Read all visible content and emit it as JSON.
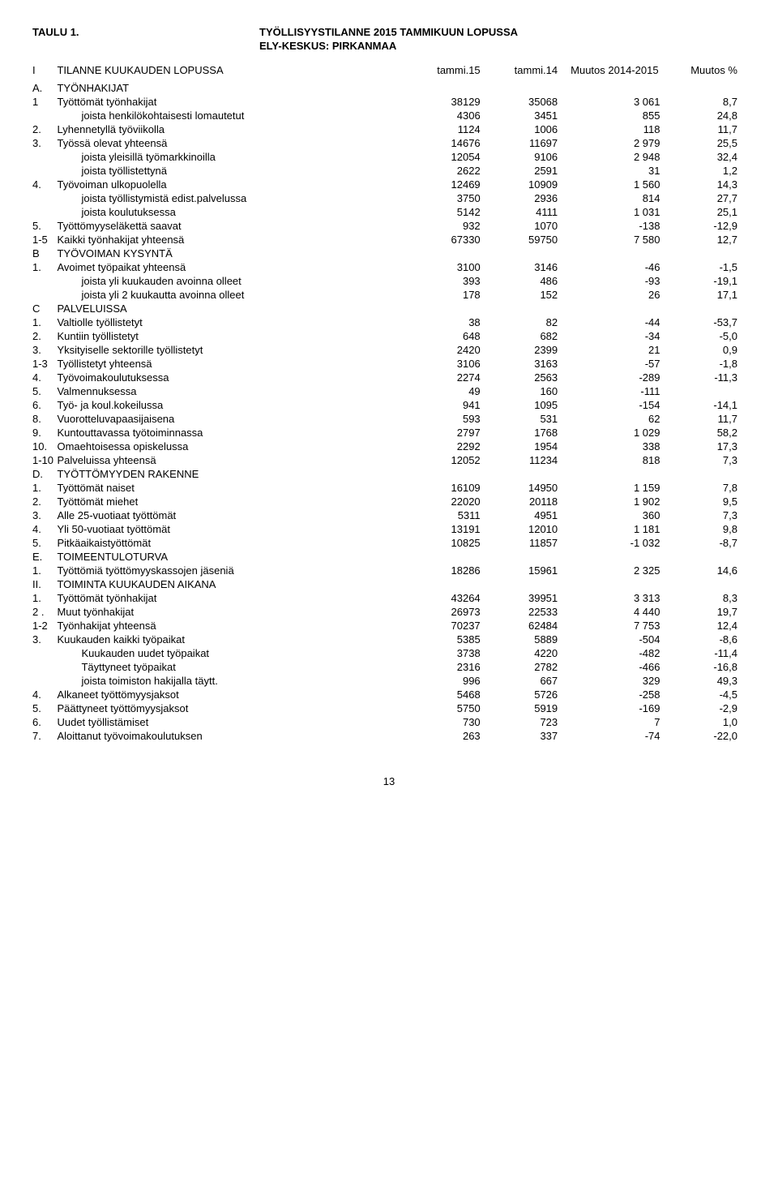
{
  "title_left": "TAULU 1.",
  "title_center": "TYÖLLISYYSTILANNE 2015 TAMMIKUUN LOPUSSA",
  "subtitle": "ELY-KESKUS: PIRKANMAA",
  "header": {
    "code": "I",
    "label": "TILANNE KUUKAUDEN LOPUSSA",
    "c1": "tammi.15",
    "c2": "tammi.14",
    "c3": "Muutos 2014-2015",
    "c4": "Muutos %"
  },
  "rows": [
    {
      "code": "A.",
      "label": "TYÖNHAKIJAT",
      "section": true
    },
    {
      "code": "1",
      "label": "Työttömät työnhakijat",
      "v": [
        "38129",
        "35068",
        "3 061",
        "8,7"
      ]
    },
    {
      "code": "",
      "label": "joista henkilökohtaisesti lomautetut",
      "indent": true,
      "v": [
        "4306",
        "3451",
        "855",
        "24,8"
      ]
    },
    {
      "code": "2.",
      "label": "Lyhennetyllä työviikolla",
      "v": [
        "1124",
        "1006",
        "118",
        "11,7"
      ]
    },
    {
      "code": "3.",
      "label": "Työssä olevat yhteensä",
      "v": [
        "14676",
        "11697",
        "2 979",
        "25,5"
      ]
    },
    {
      "code": "",
      "label": "joista yleisillä työmarkkinoilla",
      "indent": true,
      "v": [
        "12054",
        "9106",
        "2 948",
        "32,4"
      ]
    },
    {
      "code": "",
      "label": "joista työllistettynä",
      "indent": true,
      "v": [
        "2622",
        "2591",
        "31",
        "1,2"
      ]
    },
    {
      "code": "4.",
      "label": "Työvoiman ulkopuolella",
      "v": [
        "12469",
        "10909",
        "1 560",
        "14,3"
      ]
    },
    {
      "code": "",
      "label": "joista työllistymistä edist.palvelussa",
      "indent": true,
      "v": [
        "3750",
        "2936",
        "814",
        "27,7"
      ]
    },
    {
      "code": "",
      "label": "joista koulutuksessa",
      "indent": true,
      "v": [
        "5142",
        "4111",
        "1 031",
        "25,1"
      ]
    },
    {
      "code": "5.",
      "label": "Työttömyyseläkettä saavat",
      "v": [
        "932",
        "1070",
        "-138",
        "-12,9"
      ]
    },
    {
      "code": "1-5",
      "label": "Kaikki työnhakijat yhteensä",
      "v": [
        "67330",
        "59750",
        "7 580",
        "12,7"
      ]
    },
    {
      "code": "B",
      "label": "TYÖVOIMAN KYSYNTÄ",
      "section": true
    },
    {
      "code": "1.",
      "label": "Avoimet työpaikat yhteensä",
      "v": [
        "3100",
        "3146",
        "-46",
        "-1,5"
      ]
    },
    {
      "code": "",
      "label": "joista yli kuukauden avoinna olleet",
      "indent": true,
      "v": [
        "393",
        "486",
        "-93",
        "-19,1"
      ]
    },
    {
      "code": "",
      "label": "joista yli 2 kuukautta avoinna olleet",
      "indent": true,
      "v": [
        "178",
        "152",
        "26",
        "17,1"
      ]
    },
    {
      "code": "C",
      "label": "PALVELUISSA",
      "section": true
    },
    {
      "code": "1.",
      "label": "Valtiolle työllistetyt",
      "v": [
        "38",
        "82",
        "-44",
        "-53,7"
      ]
    },
    {
      "code": "2.",
      "label": "Kuntiin työllistetyt",
      "v": [
        "648",
        "682",
        "-34",
        "-5,0"
      ]
    },
    {
      "code": "3.",
      "label": "Yksityiselle sektorille työllistetyt",
      "v": [
        "2420",
        "2399",
        "21",
        "0,9"
      ]
    },
    {
      "code": "1-3",
      "label": "Työllistetyt yhteensä",
      "v": [
        "3106",
        "3163",
        "-57",
        "-1,8"
      ]
    },
    {
      "code": "4.",
      "label": "Työvoimakoulutuksessa",
      "v": [
        "2274",
        "2563",
        "-289",
        "-11,3"
      ]
    },
    {
      "code": "5.",
      "label": "Valmennuksessa",
      "v": [
        "49",
        "160",
        "-111",
        ""
      ]
    },
    {
      "code": "6.",
      "label": "Työ- ja koul.kokeilussa",
      "v": [
        "941",
        "1095",
        "-154",
        "-14,1"
      ]
    },
    {
      "code": "8.",
      "label": "Vuorotteluvapaasijaisena",
      "v": [
        "593",
        "531",
        "62",
        "11,7"
      ]
    },
    {
      "code": "9.",
      "label": "Kuntouttavassa työtoiminnassa",
      "v": [
        "2797",
        "1768",
        "1 029",
        "58,2"
      ]
    },
    {
      "code": "10.",
      "label": "Omaehtoisessa opiskelussa",
      "v": [
        "2292",
        "1954",
        "338",
        "17,3"
      ]
    },
    {
      "code": "1-10",
      "label": "Palveluissa yhteensä",
      "v": [
        "12052",
        "11234",
        "818",
        "7,3"
      ]
    },
    {
      "code": "D.",
      "label": "TYÖTTÖMYYDEN RAKENNE",
      "section": true
    },
    {
      "code": "1.",
      "label": "Työttömät naiset",
      "v": [
        "16109",
        "14950",
        "1 159",
        "7,8"
      ]
    },
    {
      "code": "2.",
      "label": "Työttömät miehet",
      "v": [
        "22020",
        "20118",
        "1 902",
        "9,5"
      ]
    },
    {
      "code": "3.",
      "label": "Alle 25-vuotiaat työttömät",
      "v": [
        "5311",
        "4951",
        "360",
        "7,3"
      ]
    },
    {
      "code": "4.",
      "label": "Yli 50-vuotiaat työttömät",
      "v": [
        "13191",
        "12010",
        "1 181",
        "9,8"
      ]
    },
    {
      "code": "5.",
      "label": "Pitkäaikaistyöttömät",
      "v": [
        "10825",
        "11857",
        "-1 032",
        "-8,7"
      ]
    },
    {
      "code": "E.",
      "label": "TOIMEENTULOTURVA",
      "section": true
    },
    {
      "code": "1.",
      "label": "Työttömiä työttömyyskassojen jäseniä",
      "v": [
        "18286",
        "15961",
        "2 325",
        "14,6"
      ]
    },
    {
      "code": "II.",
      "label": "TOIMINTA KUUKAUDEN AIKANA",
      "section": true
    },
    {
      "code": "1.",
      "label": "Työttömät työnhakijat",
      "v": [
        "43264",
        "39951",
        "3 313",
        "8,3"
      ]
    },
    {
      "code": "2 .",
      "label": "Muut työnhakijat",
      "v": [
        "26973",
        "22533",
        "4 440",
        "19,7"
      ]
    },
    {
      "code": "1-2",
      "label": "Työnhakijat yhteensä",
      "v": [
        "70237",
        "62484",
        "7 753",
        "12,4"
      ]
    },
    {
      "code": "3.",
      "label": "Kuukauden kaikki työpaikat",
      "v": [
        "5385",
        "5889",
        "-504",
        "-8,6"
      ]
    },
    {
      "code": "",
      "label": "Kuukauden uudet työpaikat",
      "indent": true,
      "v": [
        "3738",
        "4220",
        "-482",
        "-11,4"
      ]
    },
    {
      "code": "",
      "label": "Täyttyneet työpaikat",
      "indent": true,
      "v": [
        "2316",
        "2782",
        "-466",
        "-16,8"
      ]
    },
    {
      "code": "",
      "label": "joista toimiston hakijalla täytt.",
      "indent": true,
      "v": [
        "996",
        "667",
        "329",
        "49,3"
      ]
    },
    {
      "code": "4.",
      "label": "Alkaneet työttömyysjaksot",
      "v": [
        "5468",
        "5726",
        "-258",
        "-4,5"
      ]
    },
    {
      "code": "5.",
      "label": "Päättyneet työttömyysjaksot",
      "v": [
        "5750",
        "5919",
        "-169",
        "-2,9"
      ]
    },
    {
      "code": "6.",
      "label": "Uudet työllistämiset",
      "v": [
        "730",
        "723",
        "7",
        "1,0"
      ]
    },
    {
      "code": "7.",
      "label": "Aloittanut työvoimakoulutuksen",
      "v": [
        "263",
        "337",
        "-74",
        "-22,0"
      ]
    }
  ],
  "page_number": "13"
}
